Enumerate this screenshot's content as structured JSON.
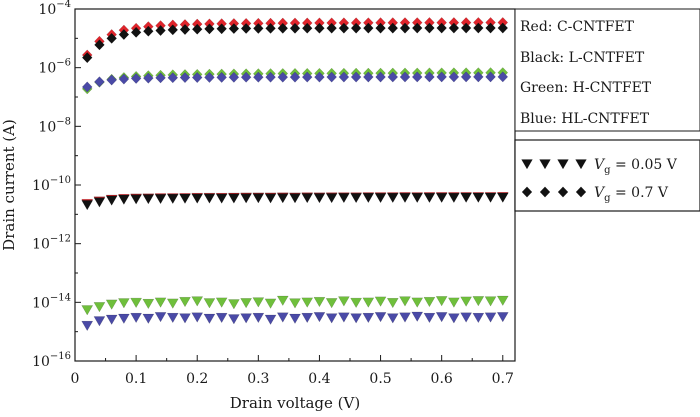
{
  "chart_data": {
    "type": "scatter",
    "xlabel": "Drain voltage (V)",
    "ylabel": "Drain current (A)",
    "xlim": [
      0,
      0.72
    ],
    "ylim": [
      1e-16,
      0.0001
    ],
    "y_scale": "log",
    "x_ticks": [
      "0",
      "0.1",
      "0.2",
      "0.3",
      "0.4",
      "0.5",
      "0.6",
      "0.7"
    ],
    "x_tick_values": [
      0,
      0.1,
      0.2,
      0.3,
      0.4,
      0.5,
      0.6,
      0.7
    ],
    "y_ticks": [
      {
        "value": 1e-16,
        "base": "10",
        "exp": "−16"
      },
      {
        "value": 1e-14,
        "base": "10",
        "exp": "−14"
      },
      {
        "value": 1e-12,
        "base": "10",
        "exp": "−12"
      },
      {
        "value": 1e-10,
        "base": "10",
        "exp": "−10"
      },
      {
        "value": 1e-08,
        "base": "10",
        "exp": "−8"
      },
      {
        "value": 1e-06,
        "base": "10",
        "exp": "−6"
      },
      {
        "value": 0.0001,
        "base": "10",
        "exp": "−4"
      }
    ],
    "grid": false,
    "legend_placement": "right",
    "legend": {
      "colors": [
        {
          "text": "Red: C-CNTFET",
          "color": "#e0242b"
        },
        {
          "text": "Black: L-CNTFET",
          "color": "#111111"
        },
        {
          "text": "Green: H-CNTFET",
          "color": "#6fbf3c"
        },
        {
          "text": "Blue: HL-CNTFET",
          "color": "#4a4aa6"
        }
      ],
      "markers": [
        {
          "symbol": "triangle-down",
          "var": "V",
          "sub": "g",
          "rest": " = 0.05 V"
        },
        {
          "symbol": "diamond",
          "var": "V",
          "sub": "g",
          "rest": " = 0.7 V"
        }
      ]
    },
    "x": [
      0.02,
      0.04,
      0.06,
      0.08,
      0.1,
      0.12,
      0.14,
      0.16,
      0.18,
      0.2,
      0.22,
      0.24,
      0.26,
      0.28,
      0.3,
      0.32,
      0.34,
      0.36,
      0.38,
      0.4,
      0.42,
      0.44,
      0.46,
      0.48,
      0.5,
      0.52,
      0.54,
      0.56,
      0.58,
      0.6,
      0.62,
      0.64,
      0.66,
      0.68,
      0.7
    ],
    "series": [
      {
        "device": "C-CNTFET",
        "marker": "diamond",
        "color": "#e0242b",
        "values": [
          2.7e-06,
          7.9e-06,
          1.34e-05,
          1.9e-05,
          2.2e-05,
          2.5e-05,
          2.7e-05,
          2.85e-05,
          2.95e-05,
          3.05e-05,
          3.1e-05,
          3.15e-05,
          3.2e-05,
          3.22e-05,
          3.25e-05,
          3.27e-05,
          3.3e-05,
          3.32e-05,
          3.33e-05,
          3.35e-05,
          3.36e-05,
          3.37e-05,
          3.38e-05,
          3.39e-05,
          3.4e-05,
          3.41e-05,
          3.42e-05,
          3.42e-05,
          3.43e-05,
          3.43e-05,
          3.44e-05,
          3.44e-05,
          3.45e-05,
          3.45e-05,
          3.45e-05
        ]
      },
      {
        "device": "L-CNTFET",
        "marker": "diamond",
        "color": "#111111",
        "values": [
          2.2e-06,
          6e-06,
          1e-05,
          1.35e-05,
          1.6e-05,
          1.75e-05,
          1.85e-05,
          1.95e-05,
          2e-05,
          2.05e-05,
          2.1e-05,
          2.12e-05,
          2.15e-05,
          2.17e-05,
          2.18e-05,
          2.19e-05,
          2.2e-05,
          2.2e-05,
          2.21e-05,
          2.21e-05,
          2.22e-05,
          2.22e-05,
          2.22e-05,
          2.23e-05,
          2.23e-05,
          2.23e-05,
          2.23e-05,
          2.24e-05,
          2.24e-05,
          2.24e-05,
          2.24e-05,
          2.24e-05,
          2.24e-05,
          2.25e-05,
          2.25e-05
        ]
      },
      {
        "device": "H-CNTFET",
        "marker": "diamond",
        "color": "#6fbf3c",
        "values": [
          1.9e-07,
          3.2e-07,
          4e-07,
          4.6e-07,
          5e-07,
          5.3e-07,
          5.5e-07,
          5.7e-07,
          5.8e-07,
          5.9e-07,
          6e-07,
          6.05e-07,
          6.1e-07,
          6.15e-07,
          6.2e-07,
          6.25e-07,
          6.3e-07,
          6.32e-07,
          6.35e-07,
          6.37e-07,
          6.4e-07,
          6.42e-07,
          6.45e-07,
          6.47e-07,
          6.5e-07,
          6.52e-07,
          6.55e-07,
          6.57e-07,
          6.6e-07,
          6.62e-07,
          6.65e-07,
          6.67e-07,
          6.7e-07,
          6.72e-07,
          6.75e-07
        ]
      },
      {
        "device": "HL-CNTFET",
        "marker": "diamond",
        "color": "#4a4aa6",
        "values": [
          2.2e-07,
          3.3e-07,
          3.8e-07,
          4.1e-07,
          4.3e-07,
          4.4e-07,
          4.5e-07,
          4.55e-07,
          4.6e-07,
          4.62e-07,
          4.65e-07,
          4.67e-07,
          4.7e-07,
          4.72e-07,
          4.73e-07,
          4.74e-07,
          4.75e-07,
          4.76e-07,
          4.77e-07,
          4.78e-07,
          4.79e-07,
          4.8e-07,
          4.8e-07,
          4.81e-07,
          4.81e-07,
          4.82e-07,
          4.82e-07,
          4.83e-07,
          4.83e-07,
          4.84e-07,
          4.84e-07,
          4.85e-07,
          4.85e-07,
          4.85e-07,
          4.86e-07
        ]
      },
      {
        "device": "C-CNTFET",
        "marker": "triangle-down",
        "color": "#e0242b",
        "values": [
          2.3e-11,
          2.8e-11,
          3.2e-11,
          3.4e-11,
          3.5e-11,
          3.55e-11,
          3.6e-11,
          3.62e-11,
          3.65e-11,
          3.7e-11,
          3.72e-11,
          3.7e-11,
          3.75e-11,
          3.78e-11,
          3.8e-11,
          3.78e-11,
          3.82e-11,
          3.8e-11,
          3.85e-11,
          3.83e-11,
          3.85e-11,
          3.87e-11,
          3.86e-11,
          3.9e-11,
          3.88e-11,
          3.9e-11,
          3.92e-11,
          3.9e-11,
          3.92e-11,
          3.93e-11,
          3.92e-11,
          3.95e-11,
          3.94e-11,
          3.95e-11,
          3.96e-11
        ]
      },
      {
        "device": "L-CNTFET",
        "marker": "triangle-down",
        "color": "#111111",
        "values": [
          2.1e-11,
          2.6e-11,
          3e-11,
          3.2e-11,
          3.3e-11,
          3.35e-11,
          3.4e-11,
          3.42e-11,
          3.45e-11,
          3.5e-11,
          3.52e-11,
          3.5e-11,
          3.55e-11,
          3.58e-11,
          3.6e-11,
          3.58e-11,
          3.62e-11,
          3.6e-11,
          3.65e-11,
          3.63e-11,
          3.65e-11,
          3.67e-11,
          3.66e-11,
          3.7e-11,
          3.68e-11,
          3.7e-11,
          3.72e-11,
          3.7e-11,
          3.72e-11,
          3.73e-11,
          3.72e-11,
          3.75e-11,
          3.74e-11,
          3.75e-11,
          3.76e-11
        ]
      },
      {
        "device": "H-CNTFET",
        "marker": "triangle-down",
        "color": "#6fbf3c",
        "values": [
          5.5e-15,
          7e-15,
          8.5e-15,
          9.5e-15,
          9.8e-15,
          9e-15,
          1e-14,
          9.2e-15,
          1.05e-14,
          1.1e-14,
          9.5e-15,
          1e-14,
          8.8e-15,
          9.6e-15,
          1.02e-14,
          9.2e-15,
          1.15e-14,
          9.4e-15,
          1e-14,
          1.05e-14,
          9.6e-15,
          1.1e-14,
          9.8e-15,
          1e-14,
          1.08e-14,
          9.7e-15,
          1.1e-14,
          1e-14,
          1.05e-14,
          1.12e-14,
          1e-14,
          1.08e-14,
          1.12e-14,
          1.1e-14,
          1.15e-14
        ]
      },
      {
        "device": "HL-CNTFET",
        "marker": "triangle-down",
        "color": "#4a4aa6",
        "values": [
          1.6e-15,
          2.3e-15,
          2.6e-15,
          2.8e-15,
          3e-15,
          2.8e-15,
          3.2e-15,
          3e-15,
          2.9e-15,
          3.1e-15,
          2.8e-15,
          3e-15,
          2.7e-15,
          2.9e-15,
          3e-15,
          2.6e-15,
          3.1e-15,
          2.8e-15,
          3e-15,
          3.2e-15,
          2.9e-15,
          3.1e-15,
          2.9e-15,
          3e-15,
          3.2e-15,
          2.9e-15,
          3.1e-15,
          3.3e-15,
          3e-15,
          3.2e-15,
          2.9e-15,
          3.1e-15,
          3e-15,
          3.1e-15,
          3.2e-15
        ]
      }
    ]
  }
}
